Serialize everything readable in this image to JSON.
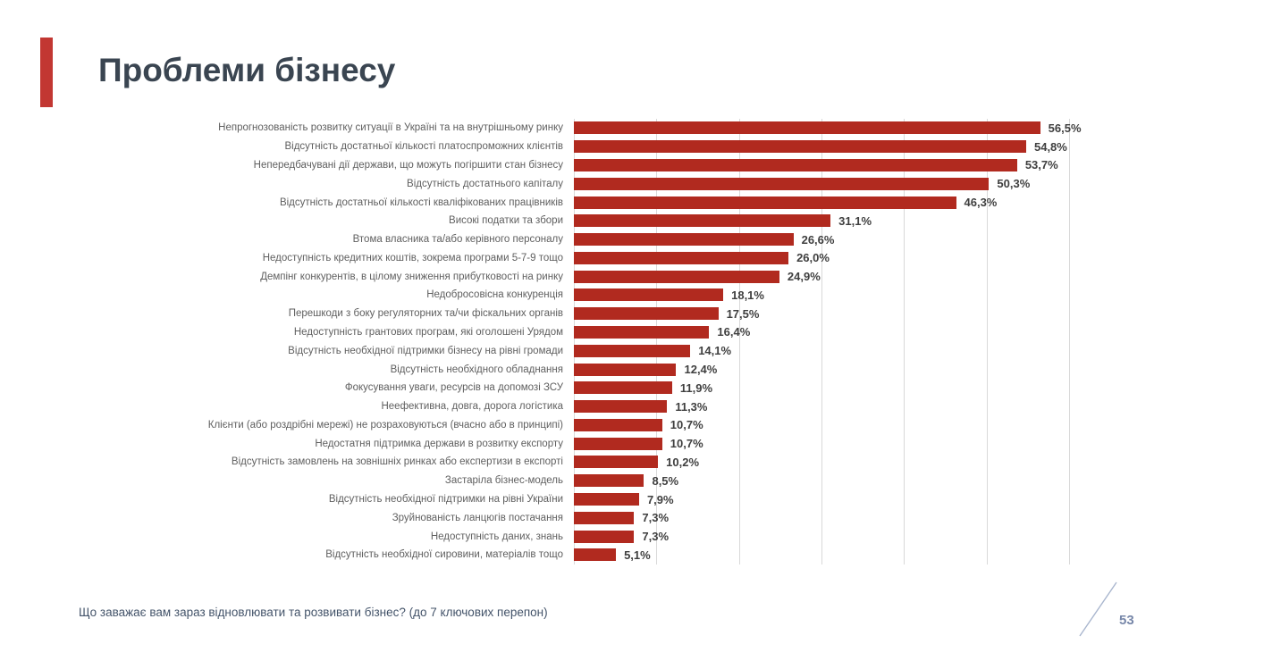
{
  "slide": {
    "title": "Проблеми бізнесу",
    "footer_question": "Що заважає вам зараз відновлювати та розвивати бізнес? (до 7 ключових перепон)",
    "page_number": "53"
  },
  "colors": {
    "bar": "#B12A1F",
    "accent_bar": "#C23732",
    "title_text": "#3A4551",
    "category_text": "#5F5F5F",
    "value_text": "#3F3F3F",
    "gridline": "#D9D9D9",
    "footer_text": "#44546A",
    "page_number_text": "#7787A9",
    "slash_line": "#A9B6CE"
  },
  "chart_data": {
    "type": "bar",
    "orientation": "horizontal",
    "title": "Проблеми бізнесу",
    "xlabel": "",
    "ylabel": "",
    "xlim": [
      0,
      60
    ],
    "gridline_step": 10,
    "grid": true,
    "legend": false,
    "categories": [
      "Непрогнозованість розвитку ситуації в Україні та на внутрішньому ринку",
      "Відсутність достатньої кількості платоспроможних клієнтів",
      "Непередбачувані дії держави, що можуть погіршити стан бізнесу",
      "Відсутність достатнього капіталу",
      "Відсутність достатньої кількості кваліфікованих працівників",
      "Високі податки та збори",
      "Втома власника та/або керівного персоналу",
      "Недоступність кредитних коштів, зокрема програми 5-7-9 тощо",
      "Демпінг конкурентів, в цілому зниження прибутковості на ринку",
      "Недобросовісна конкуренція",
      "Перешкоди з боку регуляторних та/чи фіскальних органів",
      "Недоступність грантових програм, які оголошені Урядом",
      "Відсутність необхідної підтримки бізнесу на рівні громади",
      "Відсутність необхідного обладнання",
      "Фокусування уваги, ресурсів на допомозі ЗСУ",
      "Неефективна, довга, дорога логістика",
      "Клієнти (або роздрібні мережі) не розраховуються (вчасно або в принципі)",
      "Недостатня підтримка держави в розвитку експорту",
      "Відсутність замовлень на зовнішніх ринках або експертизи в експорті",
      "Застаріла бізнес-модель",
      "Відсутність необхідної підтримки на рівні України",
      "Зруйнованість ланцюгів постачання",
      "Недоступність даних, знань",
      "Відсутність необхідної сировини, матеріалів тощо"
    ],
    "values": [
      56.5,
      54.8,
      53.7,
      50.3,
      46.3,
      31.1,
      26.6,
      26.0,
      24.9,
      18.1,
      17.5,
      16.4,
      14.1,
      12.4,
      11.9,
      11.3,
      10.7,
      10.7,
      10.2,
      8.5,
      7.9,
      7.3,
      7.3,
      5.1
    ],
    "value_labels": [
      "56,5%",
      "54,8%",
      "53,7%",
      "50,3%",
      "46,3%",
      "31,1%",
      "26,6%",
      "26,0%",
      "24,9%",
      "18,1%",
      "17,5%",
      "16,4%",
      "14,1%",
      "12,4%",
      "11,9%",
      "11,3%",
      "10,7%",
      "10,7%",
      "10,2%",
      "8,5%",
      "7,9%",
      "7,3%",
      "7,3%",
      "5,1%"
    ]
  }
}
